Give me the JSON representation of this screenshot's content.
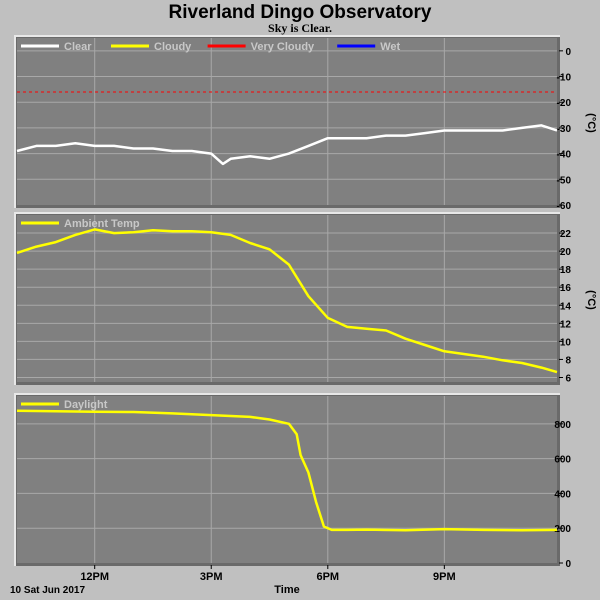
{
  "chart_data": {
    "title": "Riverland Dingo Observatory",
    "subtitle": "Sky is Clear.",
    "date_label": "10 Sat Jun 2017",
    "xlabel": "Time",
    "x_ticks": [
      "12PM",
      "3PM",
      "6PM",
      "9PM"
    ],
    "x_tick_hours": [
      12,
      15,
      18,
      21
    ],
    "x_range_hours": [
      10.0,
      23.9
    ],
    "grid": true,
    "panels": [
      {
        "type": "line",
        "unit": "(°C)",
        "ylim": [
          -60,
          5
        ],
        "yticks": [
          0,
          -10,
          -20,
          -30,
          -40,
          -50,
          -60
        ],
        "legend": [
          {
            "name": "Clear",
            "color": "#ffffff"
          },
          {
            "name": "Cloudy",
            "color": "#ffff00"
          },
          {
            "name": "Very Cloudy",
            "color": "#ff0000"
          },
          {
            "name": "Wet",
            "color": "#0000ff"
          }
        ],
        "threshold": {
          "value": -16,
          "color": "#ff0000",
          "style": "dashed"
        },
        "series": [
          {
            "name": "Clear",
            "color": "#ffffff",
            "x": [
              10.0,
              10.5,
              11.0,
              11.5,
              12.0,
              12.5,
              13.0,
              13.5,
              14.0,
              14.5,
              15.0,
              15.3,
              15.5,
              16.0,
              16.5,
              17.0,
              17.5,
              18.0,
              18.5,
              19.0,
              19.5,
              20.0,
              20.5,
              21.0,
              21.5,
              22.0,
              22.5,
              23.0,
              23.5,
              23.9
            ],
            "y": [
              -39,
              -37,
              -37,
              -36,
              -37,
              -37,
              -38,
              -38,
              -39,
              -39,
              -40,
              -44,
              -42,
              -41,
              -42,
              -40,
              -37,
              -34,
              -34,
              -34,
              -33,
              -33,
              -32,
              -31,
              -31,
              -31,
              -31,
              -30,
              -29,
              -31
            ]
          }
        ]
      },
      {
        "type": "line",
        "unit": "(°C)",
        "ylim": [
          5.5,
          24
        ],
        "yticks": [
          22,
          20,
          18,
          16,
          14,
          12,
          10,
          8,
          6
        ],
        "legend": [
          {
            "name": "Ambient Temp",
            "color": "#ffff00"
          }
        ],
        "series": [
          {
            "name": "Ambient Temp",
            "color": "#ffff00",
            "x": [
              10.0,
              10.5,
              11.0,
              11.5,
              12.0,
              12.5,
              13.0,
              13.5,
              14.0,
              14.5,
              15.0,
              15.5,
              16.0,
              16.5,
              17.0,
              17.5,
              18.0,
              18.5,
              19.0,
              19.5,
              20.0,
              20.5,
              21.0,
              21.5,
              22.0,
              22.5,
              23.0,
              23.5,
              23.9
            ],
            "y": [
              19.8,
              20.5,
              21.0,
              21.8,
              22.4,
              22.0,
              22.1,
              22.3,
              22.2,
              22.2,
              22.1,
              21.8,
              20.9,
              20.2,
              18.5,
              15.0,
              12.6,
              11.6,
              11.4,
              11.2,
              10.3,
              9.6,
              8.9,
              8.6,
              8.3,
              7.9,
              7.6,
              7.1,
              6.6
            ]
          }
        ]
      },
      {
        "type": "line",
        "unit": "",
        "ylim": [
          0,
          960
        ],
        "yticks": [
          800,
          600,
          400,
          200,
          0
        ],
        "legend": [
          {
            "name": "Daylight",
            "color": "#ffff00"
          }
        ],
        "series": [
          {
            "name": "Daylight",
            "color": "#ffff00",
            "x": [
              10.0,
              11.0,
              12.0,
              13.0,
              14.0,
              15.0,
              16.0,
              16.5,
              17.0,
              17.2,
              17.3,
              17.5,
              17.7,
              17.9,
              18.1,
              18.5,
              19.0,
              20.0,
              21.0,
              22.0,
              23.0,
              23.9
            ],
            "y": [
              875,
              872,
              870,
              868,
              860,
              850,
              840,
              825,
              800,
              740,
              620,
              520,
              350,
              210,
              190,
              190,
              192,
              188,
              195,
              190,
              188,
              190
            ]
          }
        ]
      }
    ]
  }
}
